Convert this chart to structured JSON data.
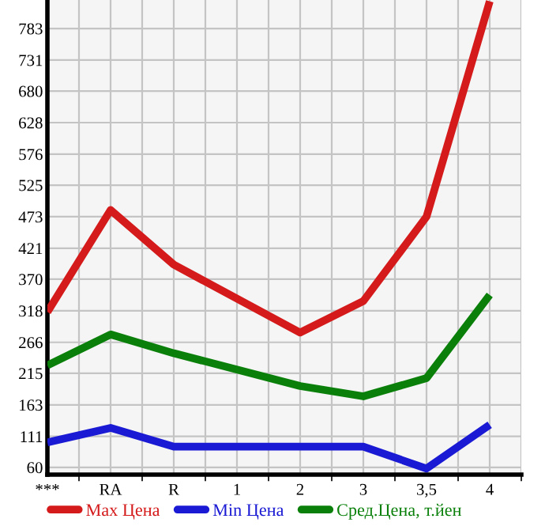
{
  "chart_data": {
    "type": "line",
    "categories": [
      "***",
      "RA",
      "R",
      "1",
      "2",
      "3",
      "3,5",
      "4"
    ],
    "series": [
      {
        "name": "Max Цена",
        "color": "#d41a1a",
        "values": [
          316,
          484,
          394,
          null,
          282,
          334,
          473,
          828
        ]
      },
      {
        "name": "Min Цена",
        "color": "#1a1ad4",
        "values": [
          101,
          125,
          94,
          null,
          94,
          94,
          58,
          130
        ]
      },
      {
        "name": "Сред.Цена, т.йен",
        "color": "#0a800a",
        "values": [
          228,
          279,
          248,
          null,
          194,
          177,
          207,
          344
        ]
      }
    ],
    "ylim": [
      48,
      830
    ],
    "yticks": [
      60,
      111,
      163,
      215,
      266,
      318,
      370,
      421,
      473,
      525,
      576,
      628,
      680,
      731,
      783
    ],
    "grid": true,
    "legend": "bottom",
    "marker": "none",
    "line_style": "solid"
  }
}
